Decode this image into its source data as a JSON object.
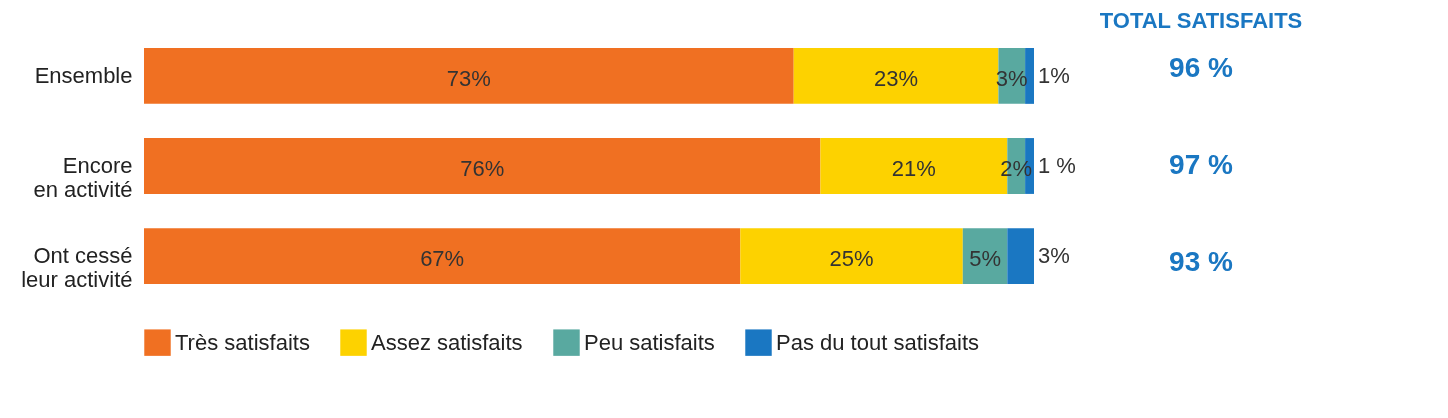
{
  "chart_data": {
    "type": "bar",
    "orientation": "horizontal",
    "stacked": true,
    "categories": [
      "Ensemble",
      "Encore en activité",
      "Ont cessé leur activité"
    ],
    "series": [
      {
        "name": "Très satisfaits",
        "color": "#f07022",
        "values": [
          73,
          76,
          67
        ],
        "value_labels": [
          "73%",
          "76%",
          "67%"
        ]
      },
      {
        "name": "Assez satisfaits",
        "color": "#fdd200",
        "values": [
          23,
          21,
          25
        ],
        "value_labels": [
          "23%",
          "21%",
          "25%"
        ]
      },
      {
        "name": "Peu satisfaits",
        "color": "#59a9a0",
        "values": [
          3,
          2,
          5
        ],
        "value_labels": [
          "3%",
          "2%",
          "5%"
        ]
      },
      {
        "name": "Pas du tout satisfaits",
        "color": "#1a77c2",
        "values": [
          1,
          1,
          3
        ],
        "value_labels": [
          "1%",
          "1 %",
          "3%"
        ]
      }
    ],
    "annotations": [
      "TOTAL SATISFAITS",
      "96 %",
      "97 %",
      "93 %"
    ],
    "legend": "bottom",
    "grid": false
  }
}
